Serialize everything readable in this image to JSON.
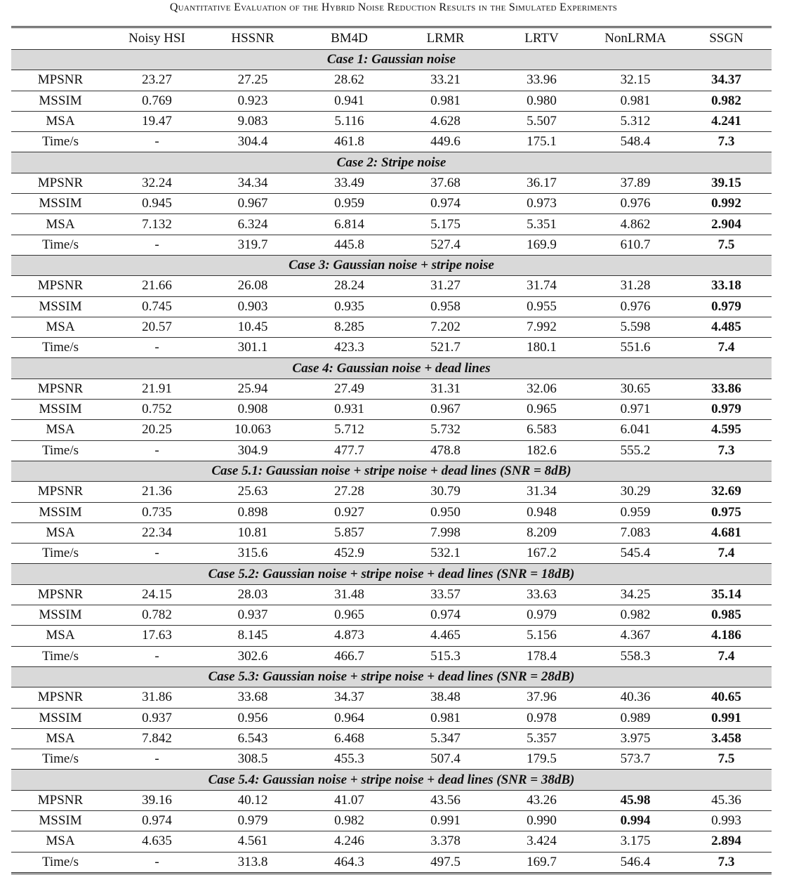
{
  "caption": "Quantitative Evaluation of the Hybrid Noise Reduction Results in the Simulated Experiments",
  "header": [
    "",
    "Noisy HSI",
    "HSSNR",
    "BM4D",
    "LRMR",
    "LRTV",
    "NonLRMA",
    "SSGN"
  ],
  "cases": [
    {
      "title": "Case 1: Gaussian noise",
      "rows": [
        {
          "metric": "MPSNR",
          "values": [
            "23.27",
            "27.25",
            "28.62",
            "33.21",
            "33.96",
            "32.15",
            "34.37"
          ],
          "bold": 6
        },
        {
          "metric": "MSSIM",
          "values": [
            "0.769",
            "0.923",
            "0.941",
            "0.981",
            "0.980",
            "0.981",
            "0.982"
          ],
          "bold": 6
        },
        {
          "metric": "MSA",
          "values": [
            "19.47",
            "9.083",
            "5.116",
            "4.628",
            "5.507",
            "5.312",
            "4.241"
          ],
          "bold": 6
        },
        {
          "metric": "Time/s",
          "values": [
            "-",
            "304.4",
            "461.8",
            "449.6",
            "175.1",
            "548.4",
            "7.3"
          ],
          "bold": 6
        }
      ]
    },
    {
      "title": "Case 2: Stripe noise",
      "rows": [
        {
          "metric": "MPSNR",
          "values": [
            "32.24",
            "34.34",
            "33.49",
            "37.68",
            "36.17",
            "37.89",
            "39.15"
          ],
          "bold": 6
        },
        {
          "metric": "MSSIM",
          "values": [
            "0.945",
            "0.967",
            "0.959",
            "0.974",
            "0.973",
            "0.976",
            "0.992"
          ],
          "bold": 6
        },
        {
          "metric": "MSA",
          "values": [
            "7.132",
            "6.324",
            "6.814",
            "5.175",
            "5.351",
            "4.862",
            "2.904"
          ],
          "bold": 6
        },
        {
          "metric": "Time/s",
          "values": [
            "-",
            "319.7",
            "445.8",
            "527.4",
            "169.9",
            "610.7",
            "7.5"
          ],
          "bold": 6
        }
      ]
    },
    {
      "title": "Case 3: Gaussian noise + stripe noise",
      "rows": [
        {
          "metric": "MPSNR",
          "values": [
            "21.66",
            "26.08",
            "28.24",
            "31.27",
            "31.74",
            "31.28",
            "33.18"
          ],
          "bold": 6
        },
        {
          "metric": "MSSIM",
          "values": [
            "0.745",
            "0.903",
            "0.935",
            "0.958",
            "0.955",
            "0.976",
            "0.979"
          ],
          "bold": 6
        },
        {
          "metric": "MSA",
          "values": [
            "20.57",
            "10.45",
            "8.285",
            "7.202",
            "7.992",
            "5.598",
            "4.485"
          ],
          "bold": 6
        },
        {
          "metric": "Time/s",
          "values": [
            "-",
            "301.1",
            "423.3",
            "521.7",
            "180.1",
            "551.6",
            "7.4"
          ],
          "bold": 6
        }
      ]
    },
    {
      "title": "Case 4: Gaussian noise + dead lines",
      "rows": [
        {
          "metric": "MPSNR",
          "values": [
            "21.91",
            "25.94",
            "27.49",
            "31.31",
            "32.06",
            "30.65",
            "33.86"
          ],
          "bold": 6
        },
        {
          "metric": "MSSIM",
          "values": [
            "0.752",
            "0.908",
            "0.931",
            "0.967",
            "0.965",
            "0.971",
            "0.979"
          ],
          "bold": 6
        },
        {
          "metric": "MSA",
          "values": [
            "20.25",
            "10.063",
            "5.712",
            "5.732",
            "6.583",
            "6.041",
            "4.595"
          ],
          "bold": 6
        },
        {
          "metric": "Time/s",
          "values": [
            "-",
            "304.9",
            "477.7",
            "478.8",
            "182.6",
            "555.2",
            "7.3"
          ],
          "bold": 6
        }
      ]
    },
    {
      "title": "Case 5.1: Gaussian noise + stripe noise + dead lines (SNR = 8dB)",
      "rows": [
        {
          "metric": "MPSNR",
          "values": [
            "21.36",
            "25.63",
            "27.28",
            "30.79",
            "31.34",
            "30.29",
            "32.69"
          ],
          "bold": 6
        },
        {
          "metric": "MSSIM",
          "values": [
            "0.735",
            "0.898",
            "0.927",
            "0.950",
            "0.948",
            "0.959",
            "0.975"
          ],
          "bold": 6
        },
        {
          "metric": "MSA",
          "values": [
            "22.34",
            "10.81",
            "5.857",
            "7.998",
            "8.209",
            "7.083",
            "4.681"
          ],
          "bold": 6
        },
        {
          "metric": "Time/s",
          "values": [
            "-",
            "315.6",
            "452.9",
            "532.1",
            "167.2",
            "545.4",
            "7.4"
          ],
          "bold": 6
        }
      ]
    },
    {
      "title": "Case 5.2: Gaussian noise + stripe noise + dead lines (SNR = 18dB)",
      "rows": [
        {
          "metric": "MPSNR",
          "values": [
            "24.15",
            "28.03",
            "31.48",
            "33.57",
            "33.63",
            "34.25",
            "35.14"
          ],
          "bold": 6
        },
        {
          "metric": "MSSIM",
          "values": [
            "0.782",
            "0.937",
            "0.965",
            "0.974",
            "0.979",
            "0.982",
            "0.985"
          ],
          "bold": 6
        },
        {
          "metric": "MSA",
          "values": [
            "17.63",
            "8.145",
            "4.873",
            "4.465",
            "5.156",
            "4.367",
            "4.186"
          ],
          "bold": 6
        },
        {
          "metric": "Time/s",
          "values": [
            "-",
            "302.6",
            "466.7",
            "515.3",
            "178.4",
            "558.3",
            "7.4"
          ],
          "bold": 6
        }
      ]
    },
    {
      "title": "Case 5.3: Gaussian noise + stripe noise + dead lines (SNR = 28dB)",
      "rows": [
        {
          "metric": "MPSNR",
          "values": [
            "31.86",
            "33.68",
            "34.37",
            "38.48",
            "37.96",
            "40.36",
            "40.65"
          ],
          "bold": 6
        },
        {
          "metric": "MSSIM",
          "values": [
            "0.937",
            "0.956",
            "0.964",
            "0.981",
            "0.978",
            "0.989",
            "0.991"
          ],
          "bold": 6
        },
        {
          "metric": "MSA",
          "values": [
            "7.842",
            "6.543",
            "6.468",
            "5.347",
            "5.357",
            "3.975",
            "3.458"
          ],
          "bold": 6
        },
        {
          "metric": "Time/s",
          "values": [
            "-",
            "308.5",
            "455.3",
            "507.4",
            "179.5",
            "573.7",
            "7.5"
          ],
          "bold": 6
        }
      ]
    },
    {
      "title": "Case 5.4: Gaussian noise + stripe noise + dead lines (SNR = 38dB)",
      "rows": [
        {
          "metric": "MPSNR",
          "values": [
            "39.16",
            "40.12",
            "41.07",
            "43.56",
            "43.26",
            "45.98",
            "45.36"
          ],
          "bold": 5
        },
        {
          "metric": "MSSIM",
          "values": [
            "0.974",
            "0.979",
            "0.982",
            "0.991",
            "0.990",
            "0.994",
            "0.993"
          ],
          "bold": 5
        },
        {
          "metric": "MSA",
          "values": [
            "4.635",
            "4.561",
            "4.246",
            "3.378",
            "3.424",
            "3.175",
            "2.894"
          ],
          "bold": 6
        },
        {
          "metric": "Time/s",
          "values": [
            "-",
            "313.8",
            "464.3",
            "497.5",
            "169.7",
            "546.4",
            "7.3"
          ],
          "bold": 6
        }
      ]
    }
  ]
}
